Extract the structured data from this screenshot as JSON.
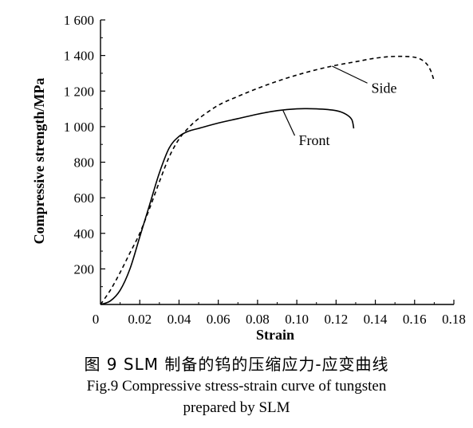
{
  "chart_data": {
    "type": "line",
    "xlabel": "Strain",
    "ylabel": "Compressive strength/MPa",
    "xlim": [
      0,
      0.18
    ],
    "ylim": [
      0,
      1600
    ],
    "x_ticks": [
      {
        "value": 0,
        "label": "0"
      },
      {
        "value": 0.02,
        "label": "0.02"
      },
      {
        "value": 0.04,
        "label": "0.04"
      },
      {
        "value": 0.06,
        "label": "0.06"
      },
      {
        "value": 0.08,
        "label": "0.08"
      },
      {
        "value": 0.1,
        "label": "0.10"
      },
      {
        "value": 0.12,
        "label": "0.12"
      },
      {
        "value": 0.14,
        "label": "0.14"
      },
      {
        "value": 0.16,
        "label": "0.16"
      },
      {
        "value": 0.18,
        "label": "0.18"
      }
    ],
    "y_ticks": [
      {
        "value": 200,
        "label": "200"
      },
      {
        "value": 400,
        "label": "400"
      },
      {
        "value": 600,
        "label": "600"
      },
      {
        "value": 800,
        "label": "800"
      },
      {
        "value": 1000,
        "label": "1 000"
      },
      {
        "value": 1200,
        "label": "1 200"
      },
      {
        "value": 1400,
        "label": "1 400"
      },
      {
        "value": 1600,
        "label": "1 600"
      }
    ],
    "grid": false,
    "series": [
      {
        "name": "Front",
        "style": "solid",
        "color": "#000000",
        "points": [
          [
            0,
            0
          ],
          [
            0.005,
            20
          ],
          [
            0.01,
            80
          ],
          [
            0.015,
            200
          ],
          [
            0.02,
            380
          ],
          [
            0.025,
            560
          ],
          [
            0.03,
            740
          ],
          [
            0.035,
            880
          ],
          [
            0.04,
            945
          ],
          [
            0.045,
            975
          ],
          [
            0.05,
            990
          ],
          [
            0.06,
            1020
          ],
          [
            0.07,
            1045
          ],
          [
            0.08,
            1070
          ],
          [
            0.09,
            1090
          ],
          [
            0.1,
            1100
          ],
          [
            0.11,
            1100
          ],
          [
            0.12,
            1090
          ],
          [
            0.125,
            1070
          ],
          [
            0.128,
            1040
          ],
          [
            0.129,
            990
          ]
        ]
      },
      {
        "name": "Side",
        "style": "dashed",
        "color": "#000000",
        "points": [
          [
            0,
            0
          ],
          [
            0.005,
            80
          ],
          [
            0.01,
            180
          ],
          [
            0.015,
            290
          ],
          [
            0.02,
            400
          ],
          [
            0.025,
            540
          ],
          [
            0.03,
            690
          ],
          [
            0.035,
            830
          ],
          [
            0.04,
            930
          ],
          [
            0.045,
            995
          ],
          [
            0.05,
            1045
          ],
          [
            0.06,
            1120
          ],
          [
            0.07,
            1170
          ],
          [
            0.08,
            1215
          ],
          [
            0.09,
            1255
          ],
          [
            0.1,
            1290
          ],
          [
            0.11,
            1320
          ],
          [
            0.12,
            1345
          ],
          [
            0.13,
            1365
          ],
          [
            0.14,
            1385
          ],
          [
            0.15,
            1395
          ],
          [
            0.16,
            1390
          ],
          [
            0.165,
            1365
          ],
          [
            0.168,
            1320
          ],
          [
            0.17,
            1255
          ]
        ]
      }
    ],
    "annotations": [
      {
        "text": "Side",
        "series": "Side",
        "point": [
          0.118,
          1340
        ],
        "label_at": [
          0.14,
          1200
        ]
      },
      {
        "text": "Front",
        "series": "Front",
        "point": [
          0.093,
          1090
        ],
        "label_at": [
          0.103,
          905
        ]
      }
    ]
  },
  "caption": {
    "cn": "图  9     SLM 制备的钨的压缩应力-应变曲线",
    "en_line1": "Fig.9 Compressive stress-strain curve of tungsten",
    "en_line2": "prepared by  SLM"
  }
}
